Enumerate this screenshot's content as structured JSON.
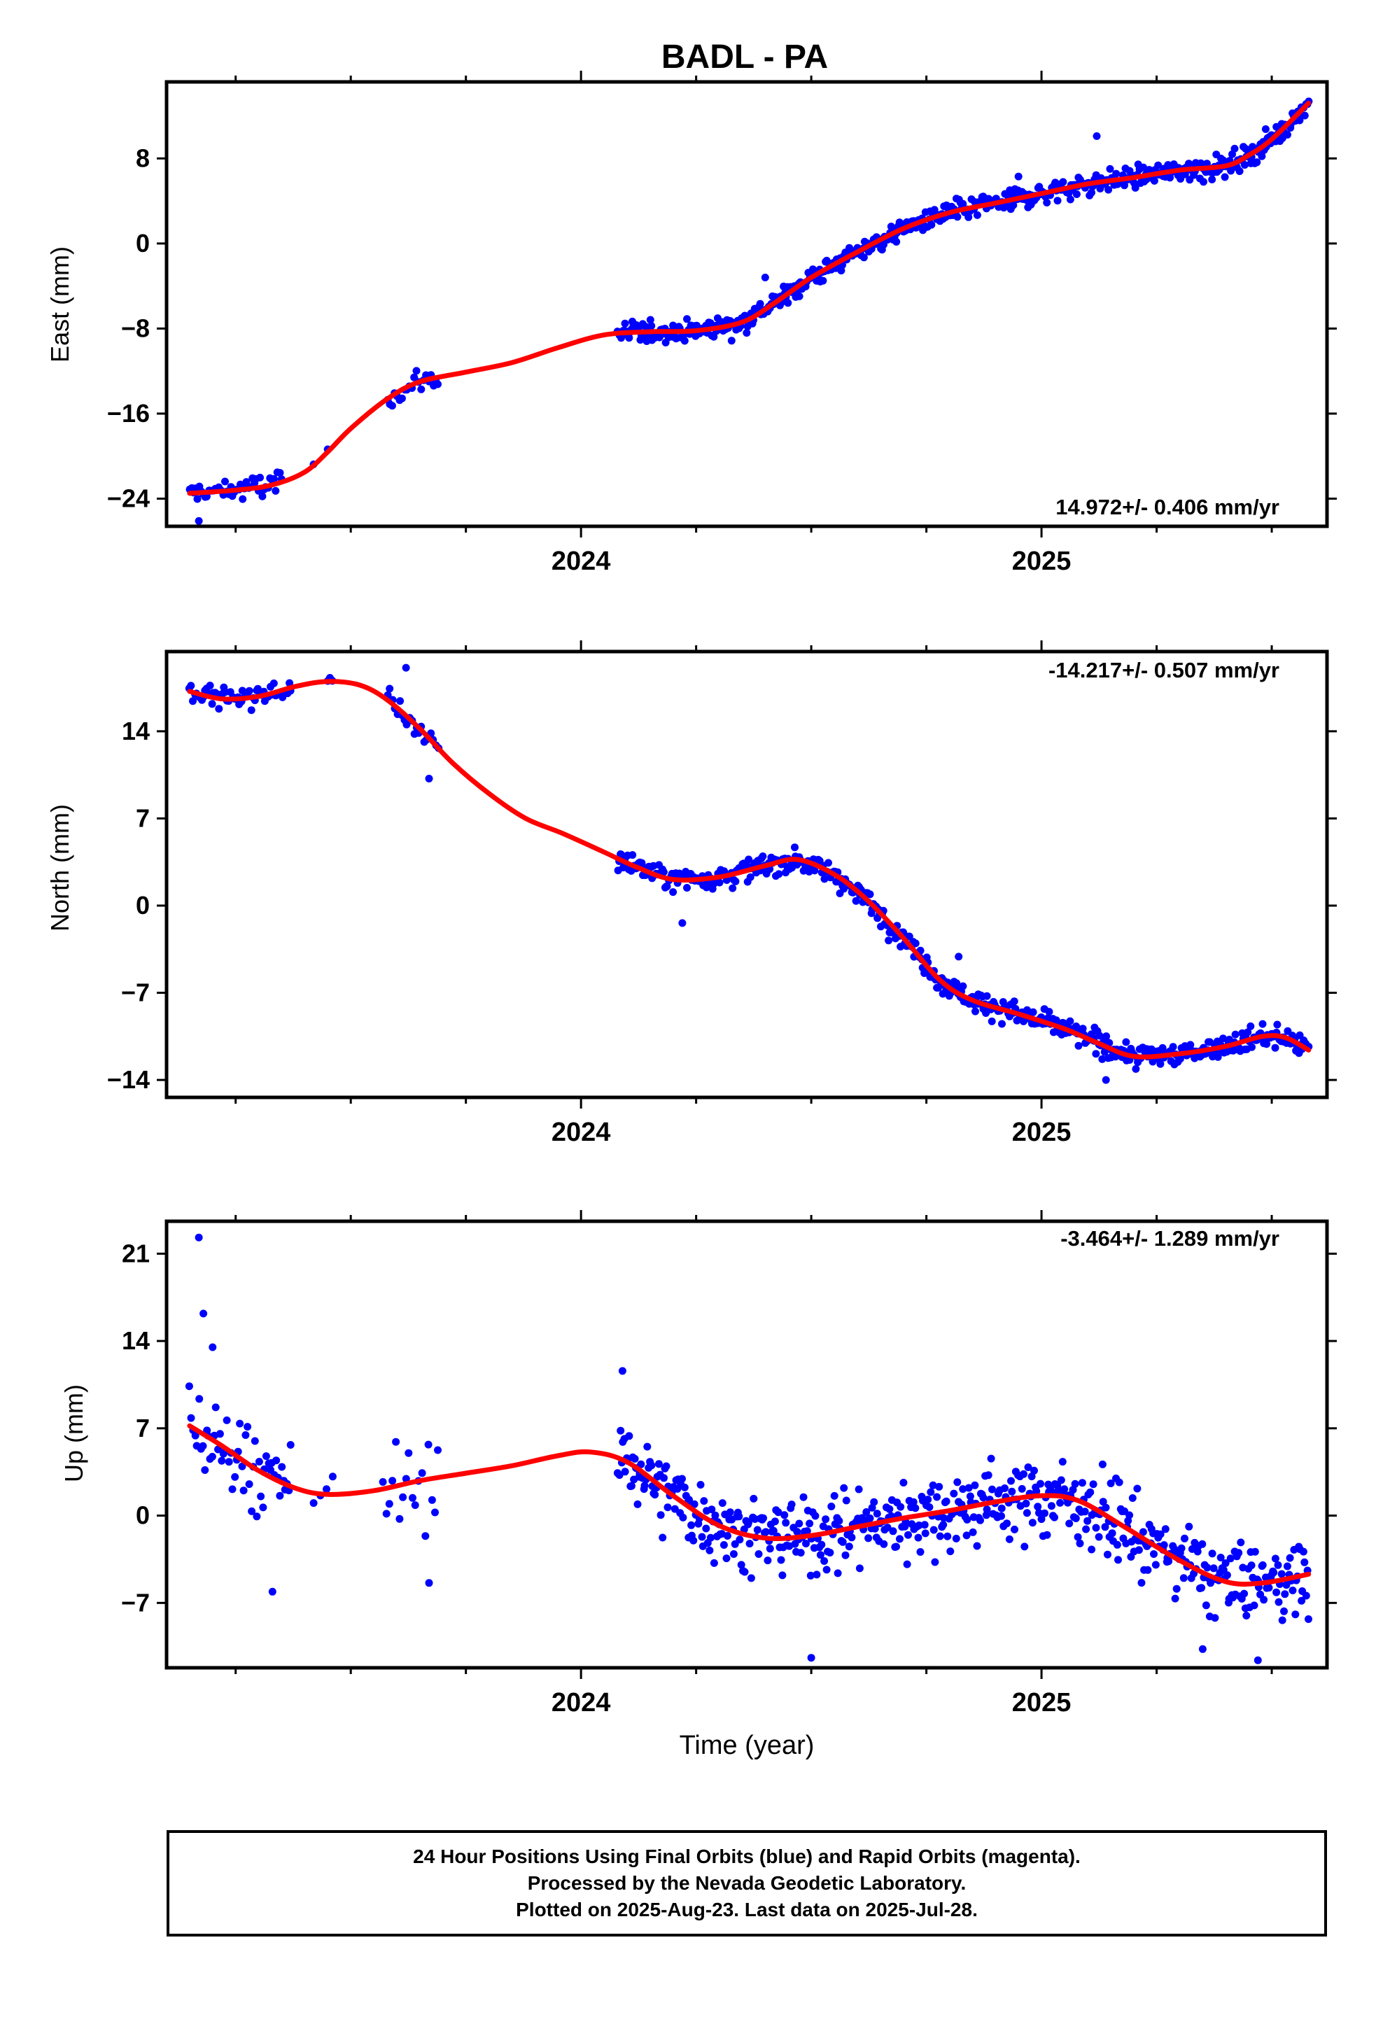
{
  "title": "BADL - PA",
  "xlabel": "Time (year)",
  "colors": {
    "points": "#0000ff",
    "fit": "#ff0000",
    "frame": "#000000"
  },
  "footer": {
    "line1": "24 Hour Positions Using Final Orbits (blue) and Rapid Orbits (magenta).",
    "line2": "Processed by the Nevada Geodetic Laboratory.",
    "line3": "Plotted on 2025-Aug-23. Last data on 2025-Jul-28."
  },
  "chart_data": [
    {
      "type": "scatter",
      "ylabel": "East (mm)",
      "rate": "14.972+/- 0.406 mm/yr",
      "rate_position": "bottom-right",
      "xlim": [
        2023.1,
        2025.62
      ],
      "ylim": [
        -26.6,
        15.2
      ],
      "yticks": [
        -24,
        -16,
        -8,
        0,
        8
      ],
      "xticks_major": [
        2024,
        2025
      ],
      "xticks_minor": [
        2023.25,
        2023.5,
        2023.75,
        2024.25,
        2024.5,
        2024.75,
        2025.25,
        2025.5
      ],
      "fit": [
        [
          2023.15,
          -23.5
        ],
        [
          2023.25,
          -23.2
        ],
        [
          2023.33,
          -22.7
        ],
        [
          2023.4,
          -21.5
        ],
        [
          2023.45,
          -19.6
        ],
        [
          2023.5,
          -17.4
        ],
        [
          2023.58,
          -14.6
        ],
        [
          2023.65,
          -13.0
        ],
        [
          2023.75,
          -12.1
        ],
        [
          2023.85,
          -11.2
        ],
        [
          2023.95,
          -9.8
        ],
        [
          2024.05,
          -8.6
        ],
        [
          2024.15,
          -8.3
        ],
        [
          2024.25,
          -8.2
        ],
        [
          2024.35,
          -7.4
        ],
        [
          2024.42,
          -5.6
        ],
        [
          2024.5,
          -3.2
        ],
        [
          2024.6,
          -0.8
        ],
        [
          2024.7,
          1.4
        ],
        [
          2024.8,
          2.9
        ],
        [
          2024.9,
          3.8
        ],
        [
          2025.0,
          4.7
        ],
        [
          2025.1,
          5.6
        ],
        [
          2025.2,
          6.2
        ],
        [
          2025.3,
          6.9
        ],
        [
          2025.4,
          7.3
        ],
        [
          2025.45,
          8.3
        ],
        [
          2025.5,
          9.8
        ],
        [
          2025.58,
          13.2
        ]
      ],
      "segments": [
        {
          "start": 2023.15,
          "end": 2023.35,
          "n": 48,
          "noise": 1.0
        },
        {
          "start": 2023.42,
          "end": 2023.45,
          "n": 2,
          "noise": 0.4
        },
        {
          "start": 2023.58,
          "end": 2023.69,
          "n": 22,
          "noise": 0.9
        },
        {
          "start": 2024.08,
          "end": 2025.58,
          "n": 560,
          "noise": 0.9
        }
      ],
      "outliers": [
        [
          2023.17,
          -26.1
        ],
        [
          2025.12,
          10.1
        ],
        [
          2024.4,
          -3.2
        ],
        [
          2024.95,
          6.3
        ]
      ]
    },
    {
      "type": "scatter",
      "ylabel": "North (mm)",
      "rate": "-14.217+/- 0.507 mm/yr",
      "rate_position": "top-right",
      "xlim": [
        2023.1,
        2025.62
      ],
      "ylim": [
        -15.4,
        20.4
      ],
      "yticks": [
        -14,
        -7,
        0,
        7,
        14
      ],
      "xticks_major": [
        2024,
        2025
      ],
      "xticks_minor": [
        2023.25,
        2023.5,
        2023.75,
        2024.25,
        2024.5,
        2024.75,
        2025.25,
        2025.5
      ],
      "fit": [
        [
          2023.15,
          17.2
        ],
        [
          2023.22,
          16.6
        ],
        [
          2023.3,
          16.8
        ],
        [
          2023.38,
          17.6
        ],
        [
          2023.45,
          18.0
        ],
        [
          2023.52,
          17.7
        ],
        [
          2023.58,
          16.5
        ],
        [
          2023.65,
          14.2
        ],
        [
          2023.72,
          11.5
        ],
        [
          2023.8,
          9.0
        ],
        [
          2023.88,
          7.0
        ],
        [
          2023.96,
          5.8
        ],
        [
          2024.05,
          4.3
        ],
        [
          2024.12,
          3.1
        ],
        [
          2024.2,
          2.1
        ],
        [
          2024.3,
          2.3
        ],
        [
          2024.4,
          3.2
        ],
        [
          2024.47,
          3.7
        ],
        [
          2024.55,
          2.5
        ],
        [
          2024.62,
          0.5
        ],
        [
          2024.7,
          -2.6
        ],
        [
          2024.78,
          -6.0
        ],
        [
          2024.85,
          -7.6
        ],
        [
          2024.95,
          -8.7
        ],
        [
          2025.05,
          -9.9
        ],
        [
          2025.12,
          -11.0
        ],
        [
          2025.2,
          -12.1
        ],
        [
          2025.3,
          -11.9
        ],
        [
          2025.4,
          -11.3
        ],
        [
          2025.48,
          -10.5
        ],
        [
          2025.53,
          -10.6
        ],
        [
          2025.58,
          -11.6
        ]
      ],
      "segments": [
        {
          "start": 2023.15,
          "end": 2023.37,
          "n": 60,
          "noise": 0.8
        },
        {
          "start": 2023.45,
          "end": 2023.46,
          "n": 3,
          "noise": 0.3
        },
        {
          "start": 2023.58,
          "end": 2023.69,
          "n": 22,
          "noise": 1.0
        },
        {
          "start": 2024.08,
          "end": 2025.58,
          "n": 560,
          "noise": 0.8
        }
      ],
      "outliers": [
        [
          2023.62,
          19.1
        ],
        [
          2023.67,
          10.2
        ],
        [
          2024.22,
          -1.4
        ],
        [
          2024.82,
          -4.1
        ],
        [
          2025.14,
          -14.0
        ]
      ]
    },
    {
      "type": "scatter",
      "ylabel": "Up (mm)",
      "rate": "-3.464+/- 1.289 mm/yr",
      "rate_position": "top-right",
      "xlim": [
        2023.1,
        2025.62
      ],
      "ylim": [
        -12.2,
        23.6
      ],
      "yticks": [
        -7,
        0,
        7,
        14,
        21
      ],
      "xticks_major": [
        2024,
        2025
      ],
      "xticks_minor": [
        2023.25,
        2023.5,
        2023.75,
        2024.25,
        2024.5,
        2024.75,
        2025.25,
        2025.5
      ],
      "fit": [
        [
          2023.15,
          7.2
        ],
        [
          2023.22,
          5.6
        ],
        [
          2023.3,
          3.6
        ],
        [
          2023.38,
          2.2
        ],
        [
          2023.45,
          1.7
        ],
        [
          2023.55,
          2.0
        ],
        [
          2023.65,
          2.8
        ],
        [
          2023.75,
          3.4
        ],
        [
          2023.85,
          4.0
        ],
        [
          2023.95,
          4.8
        ],
        [
          2024.02,
          5.1
        ],
        [
          2024.1,
          4.3
        ],
        [
          2024.2,
          1.6
        ],
        [
          2024.3,
          -0.8
        ],
        [
          2024.4,
          -1.8
        ],
        [
          2024.5,
          -1.6
        ],
        [
          2024.6,
          -0.9
        ],
        [
          2024.7,
          -0.2
        ],
        [
          2024.8,
          0.4
        ],
        [
          2024.9,
          1.1
        ],
        [
          2025.0,
          1.6
        ],
        [
          2025.08,
          1.2
        ],
        [
          2025.18,
          -0.9
        ],
        [
          2025.3,
          -3.6
        ],
        [
          2025.4,
          -5.3
        ],
        [
          2025.48,
          -5.4
        ],
        [
          2025.58,
          -4.7
        ]
      ],
      "segments": [
        {
          "start": 2023.15,
          "end": 2023.37,
          "n": 55,
          "noise": 3.0
        },
        {
          "start": 2023.42,
          "end": 2023.46,
          "n": 4,
          "noise": 1.5
        },
        {
          "start": 2023.57,
          "end": 2023.69,
          "n": 18,
          "noise": 3.5
        },
        {
          "start": 2024.08,
          "end": 2025.58,
          "n": 560,
          "noise": 2.7
        }
      ],
      "outliers": [
        [
          2023.17,
          22.3
        ],
        [
          2023.18,
          16.2
        ],
        [
          2023.2,
          13.5
        ],
        [
          2023.33,
          -6.1
        ],
        [
          2023.67,
          -5.4
        ],
        [
          2024.09,
          11.6
        ],
        [
          2024.5,
          -11.4
        ],
        [
          2025.47,
          -11.6
        ],
        [
          2025.35,
          -10.7
        ]
      ]
    }
  ]
}
